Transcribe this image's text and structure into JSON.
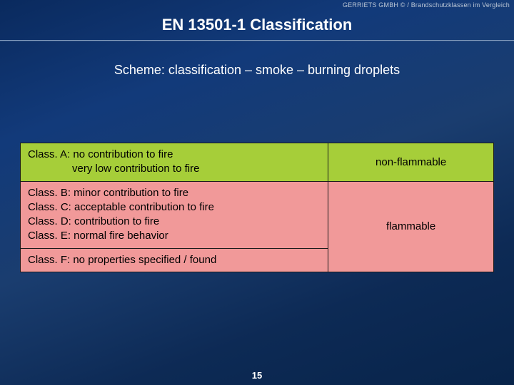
{
  "copyright": "GERRIETS GMBH © / Brandschutzklassen im Vergleich",
  "title": "EN 13501-1 Classification",
  "subtitle": "Scheme: classification – smoke – burning droplets",
  "table": {
    "colors": {
      "non_flammable_bg": "#a6ce39",
      "flammable_bg": "#f19999",
      "border": "#1a1a1a",
      "text": "#000000"
    },
    "rows": [
      {
        "lines": [
          "Class. A: no contribution to fire",
          "very low contribution to fire"
        ],
        "indent_after_first": true,
        "category": "non-flammable",
        "bg": "green",
        "rowspan": 1
      },
      {
        "lines": [
          "Class. B: minor contribution to fire",
          "Class. C: acceptable contribution to fire",
          "Class. D: contribution to fire",
          "Class. E: normal fire behavior"
        ],
        "indent_after_first": false,
        "category": "flammable",
        "bg": "pink",
        "rowspan": 2
      },
      {
        "lines": [
          "Class. F: no properties specified / found"
        ],
        "indent_after_first": false,
        "category": null,
        "bg": "pink",
        "rowspan": 0
      }
    ]
  },
  "page_number": "15",
  "theme": {
    "slide_bg_gradient": [
      "#0a2a5e",
      "#123a7a",
      "#1a3d6f",
      "#0d2a55",
      "#08244a"
    ],
    "title_color": "#ffffff",
    "subtitle_color": "#ffffff",
    "rule_top": "#8aa3c4",
    "rule_bottom": "#2a4a7a",
    "copyright_color": "#bcc7d6"
  }
}
